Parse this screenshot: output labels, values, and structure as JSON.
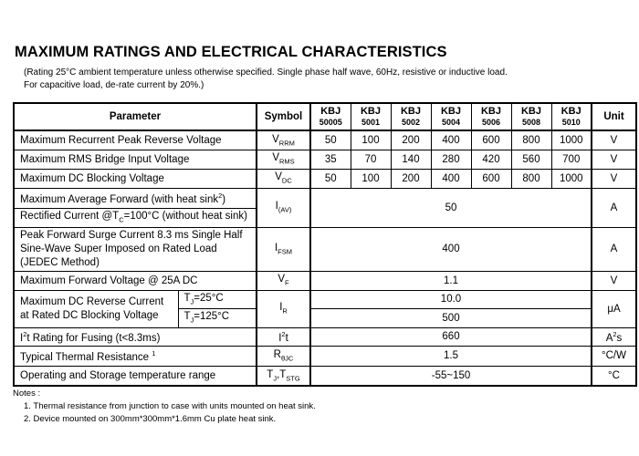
{
  "title": "MAXIMUM RATINGS AND ELECTRICAL CHARACTERISTICS",
  "subtitle_line1": "(Rating 25°C ambient temperature unless otherwise specified. Single phase half wave, 60Hz, resistive or inductive load.",
  "subtitle_line2": "For capacitive load, de-rate current by 20%.)",
  "header": {
    "parameter": "Parameter",
    "symbol": "Symbol",
    "unit": "Unit",
    "models": [
      {
        "line1": "KBJ",
        "line2": "50005"
      },
      {
        "line1": "KBJ",
        "line2": "5001"
      },
      {
        "line1": "KBJ",
        "line2": "5002"
      },
      {
        "line1": "KBJ",
        "line2": "5004"
      },
      {
        "line1": "KBJ",
        "line2": "5006"
      },
      {
        "line1": "KBJ",
        "line2": "5008"
      },
      {
        "line1": "KBJ",
        "line2": "5010"
      }
    ]
  },
  "rows": [
    {
      "param": "Maximum Recurrent Peak Reverse Voltage",
      "sym_main": "V",
      "sym_sub": "RRM",
      "values": [
        "50",
        "100",
        "200",
        "400",
        "600",
        "800",
        "1000"
      ],
      "unit": "V"
    },
    {
      "param": "Maximum RMS Bridge Input Voltage",
      "sym_main": "V",
      "sym_sub": "RMS",
      "values": [
        "35",
        "70",
        "140",
        "280",
        "420",
        "560",
        "700"
      ],
      "unit": "V"
    },
    {
      "param": "Maximum DC Blocking Voltage",
      "sym_main": "V",
      "sym_sub": "DC",
      "values": [
        "50",
        "100",
        "200",
        "400",
        "600",
        "800",
        "1000"
      ],
      "unit": "V"
    }
  ],
  "avg_forward": {
    "line1": "Maximum Average Forward (with heat sink",
    "line1_sup": "2",
    "line1_end": ")",
    "line2_a": "Rectified Current @T",
    "line2_sub": "C",
    "line2_b": "=100°C (without heat sink)",
    "sym_main": "I",
    "sym_sub": "(AV)",
    "value": "50",
    "unit": "A"
  },
  "surge": {
    "line1": "Peak Forward Surge Current 8.3 ms Single Half",
    "line2": "Sine-Wave Super Imposed on Rated Load",
    "line3": "(JEDEC Method)",
    "sym_main": "I",
    "sym_sub": "FSM",
    "value": "400",
    "unit": "A"
  },
  "forward_voltage": {
    "param": "Maximum Forward Voltage @ 25A DC",
    "sym_main": "V",
    "sym_sub": "F",
    "value": "1.1",
    "unit": "V"
  },
  "reverse_current": {
    "line1": "Maximum DC Reverse Current",
    "line2": "at Rated DC Blocking Voltage",
    "cond1_a": "T",
    "cond1_sub": "J",
    "cond1_b": "=25°C",
    "cond2_a": "T",
    "cond2_sub": "J",
    "cond2_b": "=125°C",
    "sym_main": "I",
    "sym_sub": "R",
    "value1": "10.0",
    "value2": "500",
    "unit": "μA"
  },
  "i2t": {
    "param_a": "I",
    "param_sup": "2",
    "param_b": "t Rating for Fusing (t<8.3ms)",
    "sym_a": "I",
    "sym_sup": "2",
    "sym_b": "t",
    "value": "660",
    "unit_a": "A",
    "unit_sup": "2",
    "unit_b": "s"
  },
  "thermal": {
    "param": "Typical Thermal Resistance ",
    "param_sup": "1",
    "sym_main": "R",
    "sym_sub": "θJC",
    "value": "1.5",
    "unit": "°C/W"
  },
  "temp_range": {
    "param": "Operating and Storage temperature range",
    "sym_a": "T",
    "sym_a_sub": "J",
    "sym_sep": ",T",
    "sym_b_sub": "STG",
    "value": "-55~150",
    "unit": "°C"
  },
  "notes": {
    "heading": "Notes :",
    "items": [
      "1.   Thermal resistance from junction to case with units mounted on heat sink.",
      "2.   Device mounted on 300mm*300mm*1.6mm Cu plate heat sink."
    ]
  }
}
